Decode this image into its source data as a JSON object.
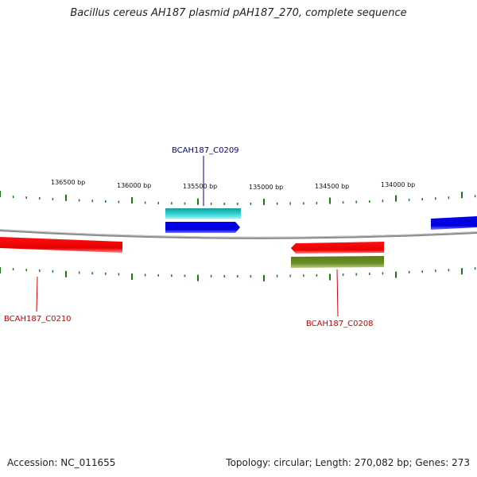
{
  "title": "Bacillus cereus AH187 plasmid pAH187_270, complete sequence",
  "ruler_labels": [
    "136500 bp",
    "136000 bp",
    "135500 bp",
    "135000 bp",
    "134500 bp",
    "134000 bp"
  ],
  "genes": [
    {
      "label": "BCAH187_C0209",
      "color": "#00008b"
    },
    {
      "label": "BCAH187_C0210",
      "color": "#cc0000"
    },
    {
      "label": "BCAH187_C0208",
      "color": "#cc0000"
    }
  ],
  "colors": {
    "forward_cds": "#0000ee",
    "forward_feature": "#1fc8c8",
    "reverse_cds": "#ee0000",
    "reverse_feature": "#6b8e23",
    "tick": "#1a7a1a",
    "backbone": "#8c8c8c"
  },
  "footer": {
    "accession": "Accession: NC_011655",
    "stats": "Topology: circular; Length: 270,082 bp; Genes: 273"
  }
}
